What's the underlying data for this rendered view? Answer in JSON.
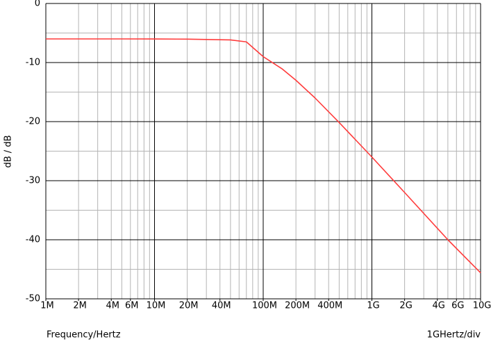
{
  "chart_data": {
    "type": "line",
    "x_label": "Frequency/Hertz",
    "y_label": "dB / dB",
    "annotation": "1GHertz/div",
    "x_scale": "log",
    "grid": true,
    "xlim": [
      1000000,
      10000000000
    ],
    "ylim": [
      -50,
      0
    ],
    "xticks": [
      {
        "value": 1000000,
        "label": "1M"
      },
      {
        "value": 2000000,
        "label": "2M"
      },
      {
        "value": 4000000,
        "label": "4M"
      },
      {
        "value": 6000000,
        "label": "6M"
      },
      {
        "value": 10000000,
        "label": "10M"
      },
      {
        "value": 20000000,
        "label": "20M"
      },
      {
        "value": 40000000,
        "label": "40M"
      },
      {
        "value": 100000000,
        "label": "100M"
      },
      {
        "value": 200000000,
        "label": "200M"
      },
      {
        "value": 400000000,
        "label": "400M"
      },
      {
        "value": 1000000000,
        "label": "1G"
      },
      {
        "value": 2000000000,
        "label": "2G"
      },
      {
        "value": 4000000000,
        "label": "4G"
      },
      {
        "value": 6000000000,
        "label": "6G"
      },
      {
        "value": 10000000000,
        "label": "10G"
      }
    ],
    "x_major_grid": [
      1000000,
      10000000,
      100000000,
      1000000000,
      10000000000
    ],
    "x_minor_grid": [
      2000000,
      3000000,
      4000000,
      5000000,
      6000000,
      7000000,
      8000000,
      9000000,
      20000000,
      30000000,
      40000000,
      50000000,
      60000000,
      70000000,
      80000000,
      90000000,
      200000000,
      300000000,
      400000000,
      500000000,
      600000000,
      700000000,
      800000000,
      900000000,
      2000000000,
      3000000000,
      4000000000,
      5000000000,
      6000000000,
      7000000000,
      8000000000,
      9000000000
    ],
    "yticks": [
      0,
      -10,
      -20,
      -30,
      -40,
      -50
    ],
    "y_minor_grid": [
      -5,
      -15,
      -25,
      -35,
      -45
    ],
    "major_grid_color": "#000000",
    "minor_grid_color": "#b4b4b4",
    "x": [
      1000000,
      2000000,
      5000000,
      10000000,
      20000000,
      50000000,
      70000000,
      100000000,
      150000000,
      200000000,
      300000000,
      500000000,
      1000000000,
      2000000000,
      5000000000,
      10000000000
    ],
    "series": [
      {
        "color": "#ff3b3b",
        "values": [
          -6.0,
          -6.0,
          -6.0,
          -6.01,
          -6.04,
          -6.17,
          -6.5,
          -9.0,
          -11.1,
          -13.0,
          -16.0,
          -20.15,
          -26.0,
          -32.0,
          -40.0,
          -45.6
        ]
      }
    ]
  }
}
